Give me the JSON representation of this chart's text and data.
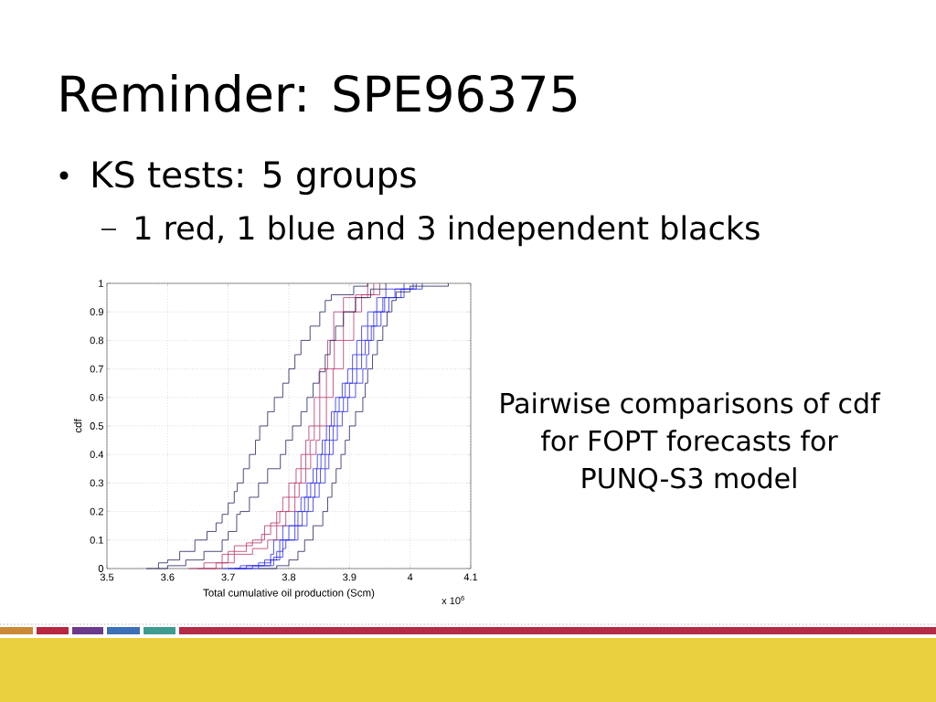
{
  "chart_data": {
    "type": "step",
    "title": "Reminder: SPE96375",
    "annotations": [
      "KS tests: 5 groups",
      "1 red, 1 blue and 3 independent blacks",
      "Pairwise comparisons of cdf for FOPT forecasts for PUNQ-S3 model",
      "x 10$^{6}$"
    ],
    "xlabel": "Total cumulative oil production (Scm)",
    "ylabel": "cdf",
    "xlim": [
      3.5,
      4.1
    ],
    "ylim": [
      0,
      1
    ],
    "xticks": [
      3.5,
      3.6,
      3.7,
      3.8,
      3.9,
      4,
      4.1
    ],
    "yticks": [
      0,
      0.1,
      0.2,
      0.3,
      0.4,
      0.5,
      0.6,
      0.7,
      0.8,
      0.9,
      1
    ],
    "grid": true,
    "series": [
      {
        "color": "#22225e",
        "x": [
          3.565,
          3.585,
          3.6,
          3.62,
          3.645,
          3.665,
          3.68,
          3.69,
          3.7,
          3.71,
          3.715,
          3.725,
          3.735,
          3.745,
          3.752,
          3.765,
          3.776,
          3.79,
          3.8,
          3.81,
          3.82,
          3.835,
          3.851,
          3.86,
          3.87,
          3.907,
          3.93
        ],
        "values": [
          0,
          0.02,
          0.03,
          0.06,
          0.1,
          0.13,
          0.16,
          0.19,
          0.23,
          0.27,
          0.3,
          0.35,
          0.4,
          0.45,
          0.5,
          0.55,
          0.6,
          0.65,
          0.7,
          0.75,
          0.8,
          0.85,
          0.9,
          0.94,
          0.96,
          0.99,
          1
        ]
      },
      {
        "color": "#22225e",
        "x": [
          3.585,
          3.6,
          3.63,
          3.66,
          3.69,
          3.7,
          3.714,
          3.72,
          3.735,
          3.75,
          3.765,
          3.786,
          3.795,
          3.806,
          3.82,
          3.83,
          3.84,
          3.85,
          3.86,
          3.868,
          3.877,
          3.89,
          3.91,
          3.935,
          3.96
        ],
        "values": [
          0,
          0.01,
          0.03,
          0.06,
          0.1,
          0.13,
          0.19,
          0.2,
          0.25,
          0.3,
          0.35,
          0.4,
          0.45,
          0.5,
          0.55,
          0.6,
          0.65,
          0.69,
          0.75,
          0.8,
          0.85,
          0.9,
          0.95,
          0.98,
          1
        ]
      },
      {
        "color": "#22225e",
        "x": [
          3.75,
          3.78,
          3.8,
          3.815,
          3.826,
          3.84,
          3.856,
          3.864,
          3.871,
          3.878,
          3.886,
          3.893,
          3.9,
          3.91,
          3.922,
          3.926,
          3.93,
          3.938,
          3.946,
          3.955,
          3.962,
          3.97,
          3.977,
          4.0,
          4.063
        ],
        "values": [
          0,
          0.01,
          0.03,
          0.06,
          0.1,
          0.15,
          0.2,
          0.25,
          0.3,
          0.35,
          0.4,
          0.45,
          0.5,
          0.55,
          0.6,
          0.65,
          0.7,
          0.75,
          0.8,
          0.85,
          0.9,
          0.94,
          0.97,
          0.99,
          1
        ]
      },
      {
        "color": "#b8336a",
        "x": [
          3.635,
          3.66,
          3.69,
          3.71,
          3.74,
          3.76,
          3.78,
          3.79,
          3.8,
          3.812,
          3.82,
          3.828,
          3.833,
          3.842,
          3.851,
          3.864,
          3.874,
          3.89,
          3.93
        ],
        "values": [
          0,
          0.02,
          0.05,
          0.08,
          0.1,
          0.15,
          0.2,
          0.25,
          0.3,
          0.35,
          0.4,
          0.45,
          0.5,
          0.6,
          0.7,
          0.8,
          0.9,
          0.95,
          1
        ]
      },
      {
        "color": "#b8336a",
        "x": [
          3.65,
          3.68,
          3.7,
          3.73,
          3.755,
          3.77,
          3.785,
          3.8,
          3.81,
          3.82,
          3.828,
          3.835,
          3.842,
          3.851,
          3.862,
          3.875,
          3.89,
          3.91,
          3.94
        ],
        "values": [
          0,
          0.02,
          0.06,
          0.09,
          0.12,
          0.16,
          0.2,
          0.25,
          0.3,
          0.35,
          0.4,
          0.45,
          0.5,
          0.6,
          0.7,
          0.8,
          0.9,
          0.96,
          1
        ]
      },
      {
        "color": "#b8336a",
        "x": [
          3.66,
          3.69,
          3.71,
          3.74,
          3.765,
          3.78,
          3.795,
          3.81,
          3.817,
          3.828,
          3.836,
          3.845,
          3.851,
          3.862,
          3.873,
          3.89,
          3.907,
          3.92,
          3.95
        ],
        "values": [
          0,
          0.02,
          0.05,
          0.07,
          0.1,
          0.15,
          0.2,
          0.25,
          0.3,
          0.35,
          0.4,
          0.45,
          0.5,
          0.6,
          0.7,
          0.8,
          0.9,
          0.96,
          1
        ]
      },
      {
        "color": "#2b2bea",
        "x": [
          3.69,
          3.72,
          3.75,
          3.77,
          3.775,
          3.79,
          3.81,
          3.82,
          3.83,
          3.84,
          3.847,
          3.855,
          3.862,
          3.87,
          3.877,
          3.888,
          3.897,
          3.905,
          3.912,
          3.92,
          3.93,
          3.945,
          3.96,
          3.99
        ],
        "values": [
          0,
          0.01,
          0.02,
          0.05,
          0.1,
          0.15,
          0.2,
          0.25,
          0.3,
          0.35,
          0.4,
          0.45,
          0.5,
          0.55,
          0.6,
          0.65,
          0.7,
          0.75,
          0.8,
          0.85,
          0.9,
          0.95,
          0.98,
          1
        ]
      },
      {
        "color": "#2b2bea",
        "x": [
          3.7,
          3.73,
          3.76,
          3.78,
          3.785,
          3.8,
          3.815,
          3.826,
          3.836,
          3.846,
          3.853,
          3.86,
          3.867,
          3.875,
          3.883,
          3.893,
          3.905,
          3.912,
          3.92,
          3.93,
          3.94,
          3.955,
          3.975,
          4.005
        ],
        "values": [
          0,
          0.01,
          0.03,
          0.06,
          0.1,
          0.15,
          0.2,
          0.25,
          0.3,
          0.35,
          0.4,
          0.45,
          0.5,
          0.55,
          0.6,
          0.65,
          0.7,
          0.75,
          0.8,
          0.85,
          0.9,
          0.95,
          0.98,
          1
        ]
      },
      {
        "color": "#2b2bea",
        "x": [
          3.71,
          3.74,
          3.77,
          3.785,
          3.79,
          3.81,
          3.822,
          3.832,
          3.843,
          3.852,
          3.86,
          3.867,
          3.873,
          3.88,
          3.89,
          3.9,
          3.912,
          3.92,
          3.926,
          3.936,
          3.945,
          3.958,
          3.985,
          4.01
        ],
        "values": [
          0,
          0.01,
          0.03,
          0.06,
          0.1,
          0.15,
          0.2,
          0.25,
          0.3,
          0.35,
          0.4,
          0.45,
          0.5,
          0.55,
          0.6,
          0.65,
          0.7,
          0.75,
          0.8,
          0.85,
          0.9,
          0.95,
          0.98,
          1
        ]
      },
      {
        "color": "#2b2bea",
        "x": [
          3.715,
          3.75,
          3.775,
          3.79,
          3.795,
          3.815,
          3.83,
          3.84,
          3.85,
          3.86,
          3.866,
          3.873,
          3.88,
          3.888,
          3.897,
          3.91,
          3.922,
          3.928,
          3.932,
          3.94,
          3.952,
          3.965,
          3.99,
          4.02
        ],
        "values": [
          0,
          0.01,
          0.04,
          0.07,
          0.1,
          0.15,
          0.2,
          0.25,
          0.3,
          0.35,
          0.4,
          0.45,
          0.5,
          0.55,
          0.6,
          0.65,
          0.7,
          0.75,
          0.8,
          0.85,
          0.9,
          0.95,
          0.98,
          1
        ]
      }
    ]
  }
}
